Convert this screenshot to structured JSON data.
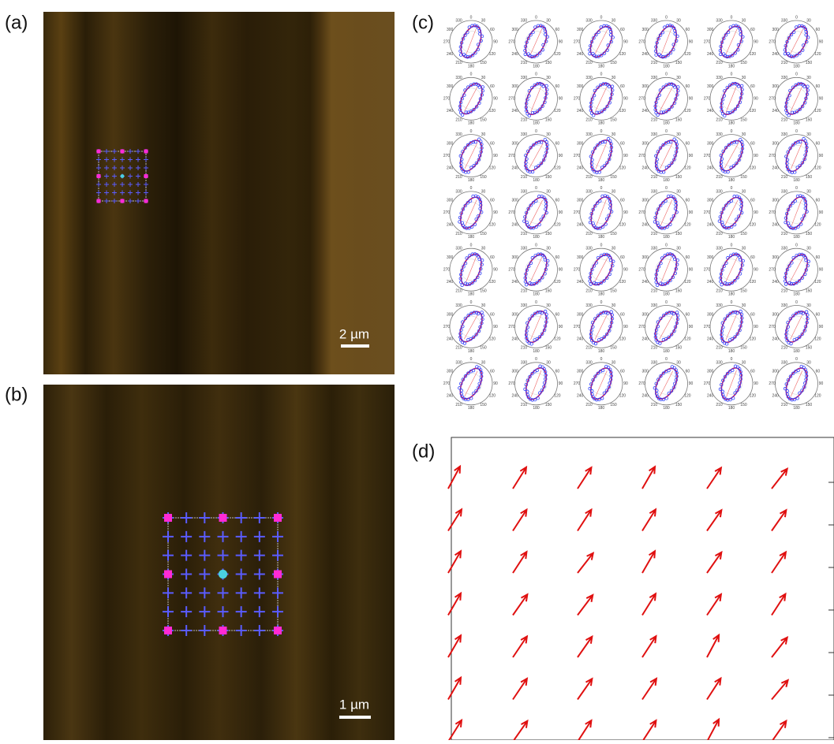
{
  "panels": [
    {
      "label": "(a)",
      "scale_bar": "2 µm"
    },
    {
      "label": "(b)",
      "scale_bar": "1 µm"
    },
    {
      "label": "(c)"
    },
    {
      "label": "(d)"
    }
  ],
  "polar_angle_labels": [
    0,
    30,
    60,
    90,
    120,
    150,
    180,
    210,
    240,
    270,
    300,
    330
  ],
  "arrow_field": {
    "angles_deg": [
      [
        62,
        58,
        57,
        60,
        56,
        52
      ],
      [
        58,
        57,
        57,
        58,
        55,
        55
      ],
      [
        60,
        57,
        52,
        60,
        55,
        56
      ],
      [
        60,
        55,
        53,
        58,
        56,
        57
      ],
      [
        60,
        56,
        55,
        57,
        62,
        52
      ],
      [
        60,
        56,
        55,
        56,
        57,
        50
      ],
      [
        58,
        55,
        57,
        57,
        62,
        55
      ]
    ]
  }
}
